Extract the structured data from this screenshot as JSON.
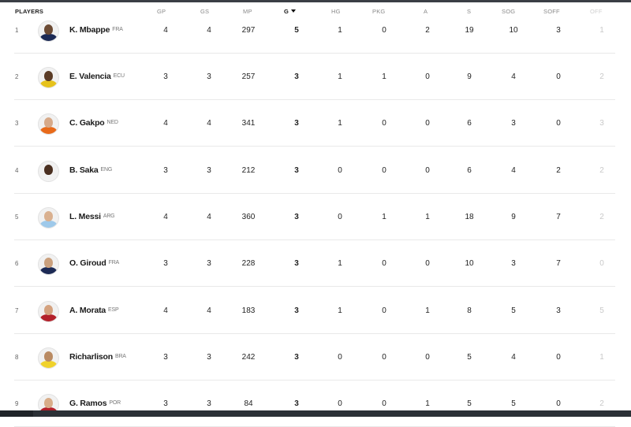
{
  "headers": {
    "players": "PLAYERS",
    "gp": "GP",
    "gs": "GS",
    "mp": "MP",
    "g": "G",
    "hg": "HG",
    "pkg": "PKG",
    "a": "A",
    "s": "S",
    "sog": "SOG",
    "soff": "SOFF",
    "off": "OFF"
  },
  "rows": [
    {
      "rank": "1",
      "name": "K. Mbappe",
      "country": "FRA",
      "gp": "4",
      "gs": "4",
      "mp": "297",
      "g": "5",
      "hg": "1",
      "pkg": "0",
      "a": "2",
      "s": "19",
      "sog": "10",
      "soff": "3",
      "off": "1"
    },
    {
      "rank": "2",
      "name": "E. Valencia",
      "country": "ECU",
      "gp": "3",
      "gs": "3",
      "mp": "257",
      "g": "3",
      "hg": "1",
      "pkg": "1",
      "a": "0",
      "s": "9",
      "sog": "4",
      "soff": "0",
      "off": "2"
    },
    {
      "rank": "3",
      "name": "C. Gakpo",
      "country": "NED",
      "gp": "4",
      "gs": "4",
      "mp": "341",
      "g": "3",
      "hg": "1",
      "pkg": "0",
      "a": "0",
      "s": "6",
      "sog": "3",
      "soff": "0",
      "off": "3"
    },
    {
      "rank": "4",
      "name": "B. Saka",
      "country": "ENG",
      "gp": "3",
      "gs": "3",
      "mp": "212",
      "g": "3",
      "hg": "0",
      "pkg": "0",
      "a": "0",
      "s": "6",
      "sog": "4",
      "soff": "2",
      "off": "2"
    },
    {
      "rank": "5",
      "name": "L. Messi",
      "country": "ARG",
      "gp": "4",
      "gs": "4",
      "mp": "360",
      "g": "3",
      "hg": "0",
      "pkg": "1",
      "a": "1",
      "s": "18",
      "sog": "9",
      "soff": "7",
      "off": "2"
    },
    {
      "rank": "6",
      "name": "O. Giroud",
      "country": "FRA",
      "gp": "3",
      "gs": "3",
      "mp": "228",
      "g": "3",
      "hg": "1",
      "pkg": "0",
      "a": "0",
      "s": "10",
      "sog": "3",
      "soff": "7",
      "off": "0"
    },
    {
      "rank": "7",
      "name": "A. Morata",
      "country": "ESP",
      "gp": "4",
      "gs": "4",
      "mp": "183",
      "g": "3",
      "hg": "1",
      "pkg": "0",
      "a": "1",
      "s": "8",
      "sog": "5",
      "soff": "3",
      "off": "5"
    },
    {
      "rank": "8",
      "name": "Richarlison",
      "country": "BRA",
      "gp": "3",
      "gs": "3",
      "mp": "242",
      "g": "3",
      "hg": "0",
      "pkg": "0",
      "a": "0",
      "s": "5",
      "sog": "4",
      "soff": "0",
      "off": "1"
    },
    {
      "rank": "9",
      "name": "G. Ramos",
      "country": "POR",
      "gp": "3",
      "gs": "3",
      "mp": "84",
      "g": "3",
      "hg": "0",
      "pkg": "0",
      "a": "1",
      "s": "5",
      "sog": "5",
      "soff": "0",
      "off": "2"
    }
  ],
  "avatar_colors": [
    {
      "skin": "#6b4a33",
      "shirt": "#1c2a55"
    },
    {
      "skin": "#5a3b25",
      "shirt": "#e6c21b"
    },
    {
      "skin": "#d7a988",
      "shirt": "#e86a1a"
    },
    {
      "skin": "#4a2f20",
      "shirt": "#f2f2f2"
    },
    {
      "skin": "#d9b08f",
      "shirt": "#9ec9ea"
    },
    {
      "skin": "#caa07d",
      "shirt": "#1c2a55"
    },
    {
      "skin": "#d4a27f",
      "shirt": "#b3202a"
    },
    {
      "skin": "#b98a62",
      "shirt": "#f0d22b"
    },
    {
      "skin": "#d8ac88",
      "shirt": "#b3202a"
    }
  ]
}
